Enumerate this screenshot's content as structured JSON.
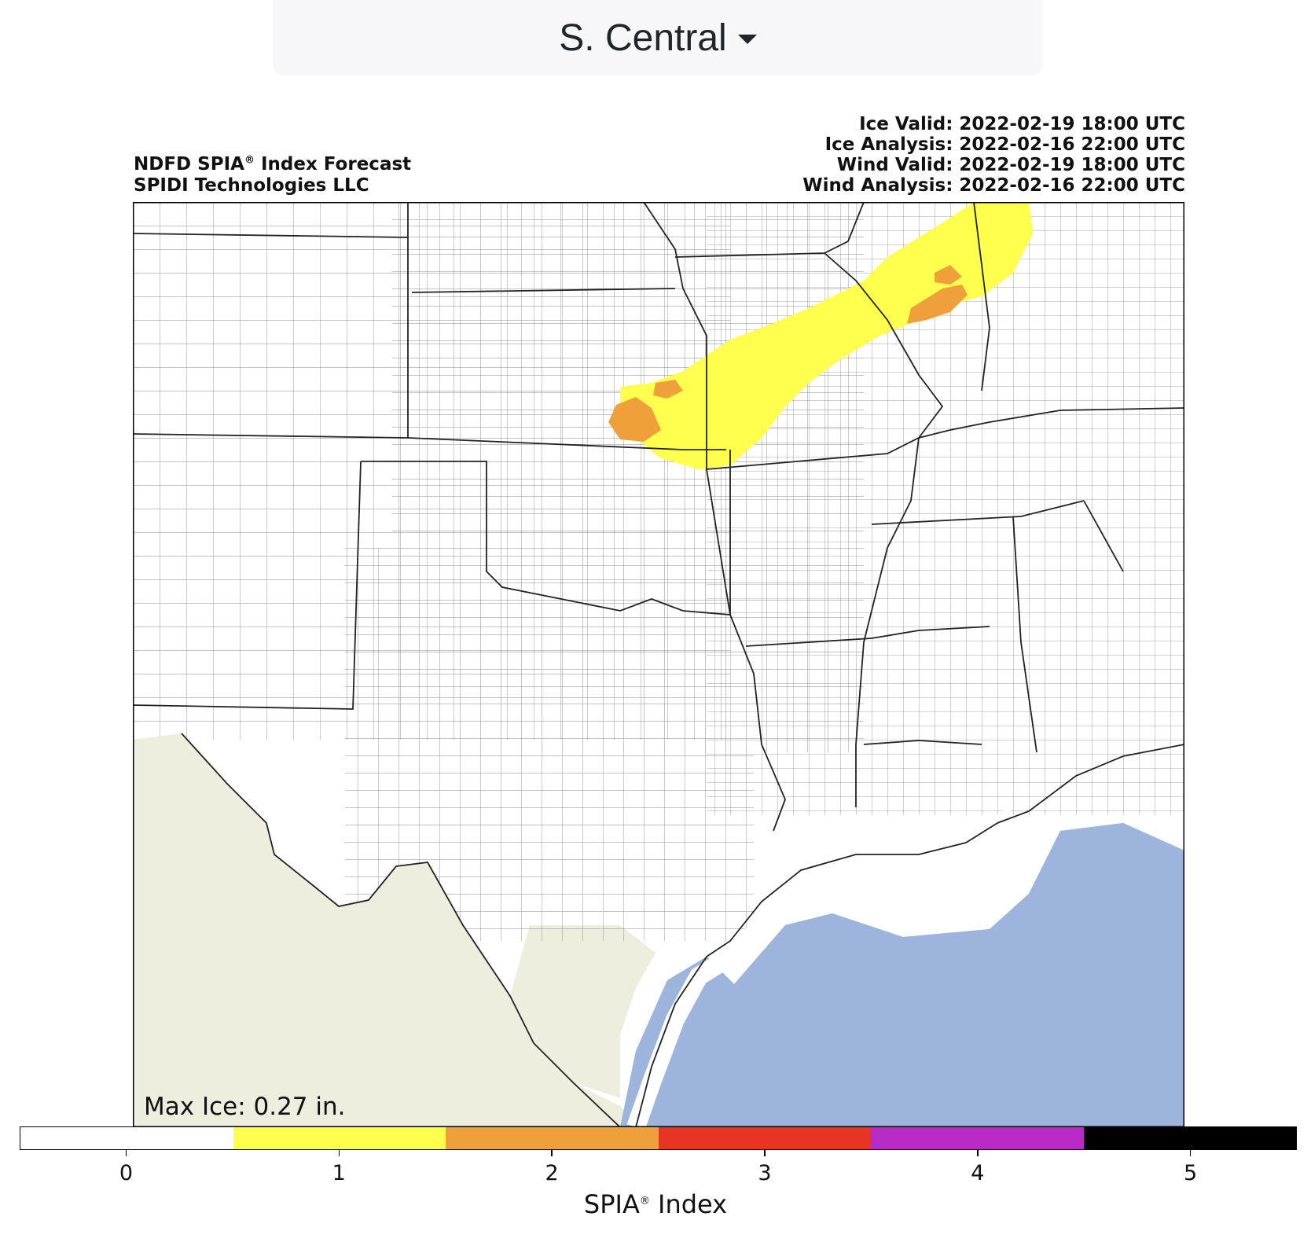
{
  "region_select": {
    "label": "S. Central",
    "icon": "caret-down-icon"
  },
  "header_left": {
    "line1_prefix": "NDFD SPIA",
    "line1_reg": "®",
    "line1_suffix": " Index Forecast",
    "line2": "SPIDI Technologies LLC"
  },
  "header_right": [
    "Ice Valid: 2022-02-19 18:00 UTC",
    "Ice Analysis: 2022-02-16 22:00 UTC",
    "Wind Valid: 2022-02-19 18:00 UTC",
    "Wind Analysis: 2022-02-16 22:00 UTC"
  ],
  "map": {
    "max_ice": "Max Ice: 0.27 in.",
    "colors": {
      "land": "#ffffff",
      "mexico": "#eeeedf",
      "water": "#9db4dc",
      "county_line": "#8a8a8a",
      "state_line": "#222222"
    }
  },
  "colorbar": {
    "title_prefix": "SPIA",
    "title_reg": "®",
    "title_suffix": " Index",
    "ticks": [
      "0",
      "1",
      "2",
      "3",
      "4",
      "5"
    ],
    "colors": [
      "#ffffff",
      "#ffff4d",
      "#f0a03a",
      "#e83423",
      "#b92bc6",
      "#000000"
    ]
  }
}
